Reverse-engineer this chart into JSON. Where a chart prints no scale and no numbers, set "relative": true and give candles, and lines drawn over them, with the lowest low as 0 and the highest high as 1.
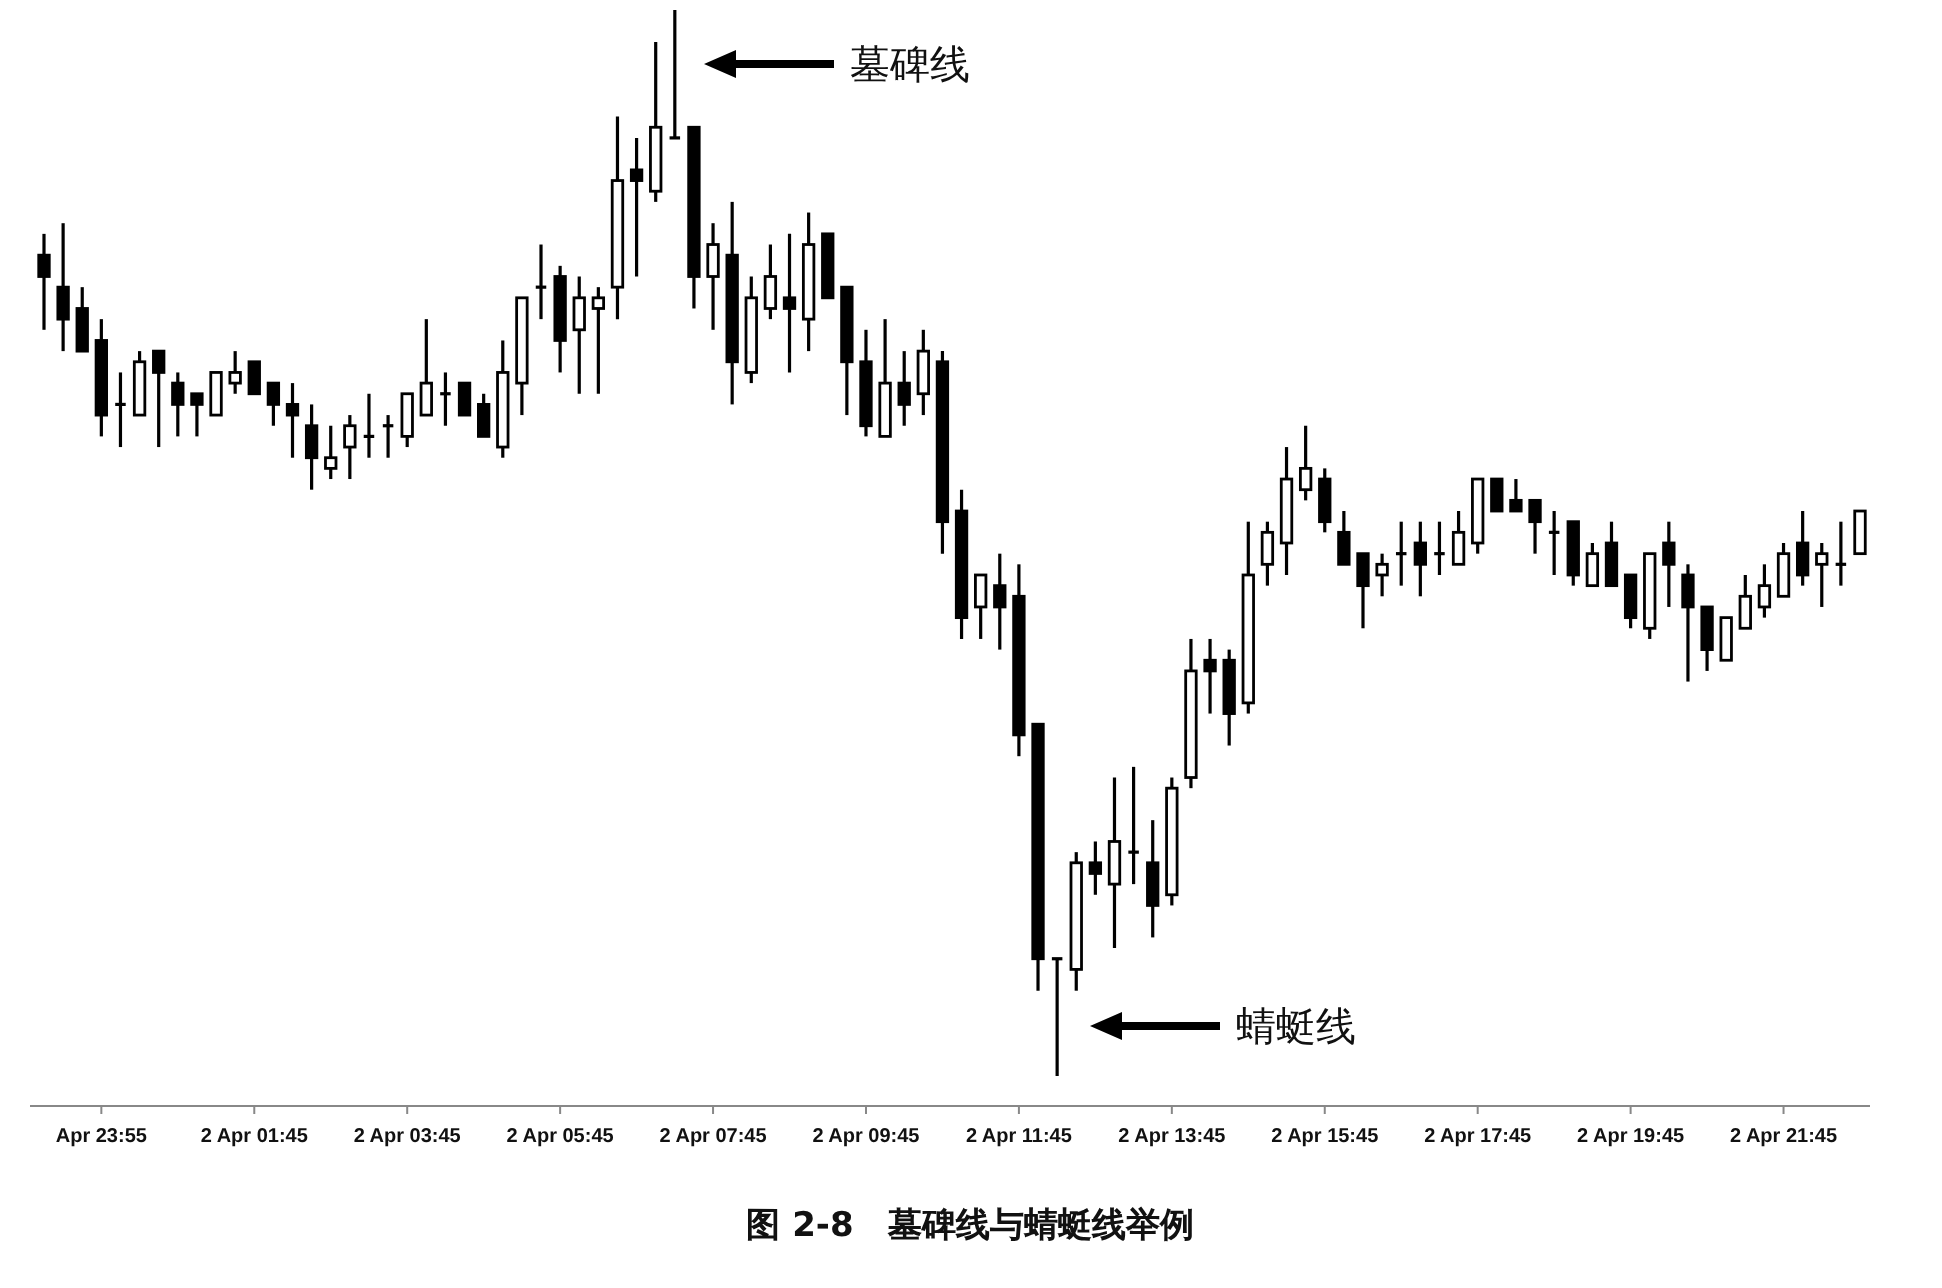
{
  "chart_data": {
    "type": "candlestick",
    "relative": true,
    "title": "图 2-8　墓碑线与蜻蜓线举例",
    "categories": [
      null,
      null,
      null,
      "Apr 23:55",
      null,
      null,
      null,
      null,
      null,
      null,
      null,
      "2 Apr 01:45",
      null,
      null,
      null,
      null,
      null,
      null,
      null,
      "2 Apr 03:45",
      null,
      null,
      null,
      null,
      null,
      null,
      null,
      "2 Apr 05:45",
      null,
      null,
      null,
      null,
      null,
      null,
      null,
      "2 Apr 07:45",
      null,
      null,
      null,
      null,
      null,
      null,
      null,
      "2 Apr 09:45",
      null,
      null,
      null,
      null,
      null,
      null,
      null,
      "2 Apr 11:45",
      null,
      null,
      null,
      null,
      null,
      null,
      null,
      "2 Apr 13:45",
      null,
      null,
      null,
      null,
      null,
      null,
      null,
      "2 Apr 15:45",
      null,
      null,
      null,
      null,
      null,
      null,
      null,
      "2 Apr 17:45",
      null,
      null,
      null,
      null,
      null,
      null,
      null,
      "2 Apr 19:45",
      null,
      null,
      null,
      null,
      null,
      null,
      null,
      "2 Apr 21:45",
      null,
      null,
      null,
      null
    ],
    "ohlc": [
      [
        0.77,
        0.79,
        0.7,
        0.75
      ],
      [
        0.74,
        0.8,
        0.68,
        0.71
      ],
      [
        0.72,
        0.74,
        0.68,
        0.68
      ],
      [
        0.69,
        0.71,
        0.6,
        0.62
      ],
      [
        0.63,
        0.66,
        0.59,
        0.63
      ],
      [
        0.62,
        0.68,
        0.62,
        0.67
      ],
      [
        0.68,
        0.68,
        0.59,
        0.66
      ],
      [
        0.65,
        0.66,
        0.6,
        0.63
      ],
      [
        0.64,
        0.64,
        0.6,
        0.63
      ],
      [
        0.62,
        0.66,
        0.62,
        0.66
      ],
      [
        0.65,
        0.68,
        0.64,
        0.66
      ],
      [
        0.67,
        0.67,
        0.64,
        0.64
      ],
      [
        0.65,
        0.65,
        0.61,
        0.63
      ],
      [
        0.63,
        0.65,
        0.58,
        0.62
      ],
      [
        0.61,
        0.63,
        0.55,
        0.58
      ],
      [
        0.57,
        0.61,
        0.56,
        0.58
      ],
      [
        0.59,
        0.62,
        0.56,
        0.61
      ],
      [
        0.6,
        0.64,
        0.58,
        0.6
      ],
      [
        0.61,
        0.62,
        0.58,
        0.61
      ],
      [
        0.6,
        0.64,
        0.59,
        0.64
      ],
      [
        0.62,
        0.71,
        0.62,
        0.65
      ],
      [
        0.64,
        0.66,
        0.61,
        0.64
      ],
      [
        0.65,
        0.65,
        0.62,
        0.62
      ],
      [
        0.63,
        0.64,
        0.6,
        0.6
      ],
      [
        0.59,
        0.69,
        0.58,
        0.66
      ],
      [
        0.65,
        0.73,
        0.62,
        0.73
      ],
      [
        0.74,
        0.78,
        0.71,
        0.74
      ],
      [
        0.75,
        0.76,
        0.66,
        0.69
      ],
      [
        0.7,
        0.75,
        0.64,
        0.73
      ],
      [
        0.72,
        0.74,
        0.64,
        0.73
      ],
      [
        0.74,
        0.9,
        0.71,
        0.84
      ],
      [
        0.85,
        0.88,
        0.75,
        0.84
      ],
      [
        0.83,
        0.97,
        0.82,
        0.89
      ],
      [
        0.88,
        1,
        0.88,
        0.88
      ],
      [
        0.89,
        0.89,
        0.72,
        0.75
      ],
      [
        0.75,
        0.8,
        0.7,
        0.78
      ],
      [
        0.77,
        0.82,
        0.63,
        0.67
      ],
      [
        0.66,
        0.75,
        0.65,
        0.73
      ],
      [
        0.72,
        0.78,
        0.71,
        0.75
      ],
      [
        0.73,
        0.79,
        0.66,
        0.72
      ],
      [
        0.71,
        0.81,
        0.68,
        0.78
      ],
      [
        0.79,
        0.79,
        0.73,
        0.73
      ],
      [
        0.74,
        0.74,
        0.62,
        0.67
      ],
      [
        0.67,
        0.7,
        0.6,
        0.61
      ],
      [
        0.6,
        0.71,
        0.6,
        0.65
      ],
      [
        0.65,
        0.68,
        0.61,
        0.63
      ],
      [
        0.64,
        0.7,
        0.62,
        0.68
      ],
      [
        0.67,
        0.68,
        0.49,
        0.52
      ],
      [
        0.53,
        0.55,
        0.41,
        0.43
      ],
      [
        0.44,
        0.47,
        0.41,
        0.47
      ],
      [
        0.46,
        0.49,
        0.4,
        0.44
      ],
      [
        0.45,
        0.48,
        0.3,
        0.32
      ],
      [
        0.33,
        0.33,
        0.08,
        0.11
      ],
      [
        0.11,
        0.11,
        0,
        0.11
      ],
      [
        0.1,
        0.21,
        0.08,
        0.2
      ],
      [
        0.2,
        0.22,
        0.17,
        0.19
      ],
      [
        0.18,
        0.28,
        0.12,
        0.22
      ],
      [
        0.21,
        0.29,
        0.18,
        0.21
      ],
      [
        0.2,
        0.24,
        0.13,
        0.16
      ],
      [
        0.17,
        0.28,
        0.16,
        0.27
      ],
      [
        0.28,
        0.41,
        0.27,
        0.38
      ],
      [
        0.39,
        0.41,
        0.34,
        0.38
      ],
      [
        0.39,
        0.4,
        0.31,
        0.34
      ],
      [
        0.35,
        0.52,
        0.34,
        0.47
      ],
      [
        0.48,
        0.52,
        0.46,
        0.51
      ],
      [
        0.5,
        0.59,
        0.47,
        0.56
      ],
      [
        0.55,
        0.61,
        0.54,
        0.57
      ],
      [
        0.56,
        0.57,
        0.51,
        0.52
      ],
      [
        0.51,
        0.53,
        0.48,
        0.48
      ],
      [
        0.49,
        0.49,
        0.42,
        0.46
      ],
      [
        0.47,
        0.49,
        0.45,
        0.48
      ],
      [
        0.49,
        0.52,
        0.46,
        0.49
      ],
      [
        0.5,
        0.52,
        0.45,
        0.48
      ],
      [
        0.49,
        0.52,
        0.47,
        0.49
      ],
      [
        0.48,
        0.53,
        0.48,
        0.51
      ],
      [
        0.5,
        0.56,
        0.49,
        0.56
      ],
      [
        0.56,
        0.56,
        0.53,
        0.53
      ],
      [
        0.54,
        0.56,
        0.53,
        0.53
      ],
      [
        0.54,
        0.54,
        0.49,
        0.52
      ],
      [
        0.51,
        0.53,
        0.47,
        0.51
      ],
      [
        0.52,
        0.52,
        0.46,
        0.47
      ],
      [
        0.46,
        0.5,
        0.46,
        0.49
      ],
      [
        0.5,
        0.52,
        0.46,
        0.46
      ],
      [
        0.47,
        0.47,
        0.42,
        0.43
      ],
      [
        0.42,
        0.49,
        0.41,
        0.49
      ],
      [
        0.5,
        0.52,
        0.44,
        0.48
      ],
      [
        0.47,
        0.48,
        0.37,
        0.44
      ],
      [
        0.44,
        0.44,
        0.38,
        0.4
      ],
      [
        0.39,
        0.43,
        0.39,
        0.43
      ],
      [
        0.42,
        0.47,
        0.42,
        0.45
      ],
      [
        0.44,
        0.48,
        0.43,
        0.46
      ],
      [
        0.45,
        0.5,
        0.45,
        0.49
      ],
      [
        0.5,
        0.53,
        0.46,
        0.47
      ],
      [
        0.48,
        0.5,
        0.44,
        0.49
      ],
      [
        0.48,
        0.52,
        0.46,
        0.48
      ],
      [
        0.49,
        0.53,
        0.49,
        0.53
      ]
    ],
    "annotations": [
      "墓碑线",
      "蜻蜓线"
    ]
  }
}
